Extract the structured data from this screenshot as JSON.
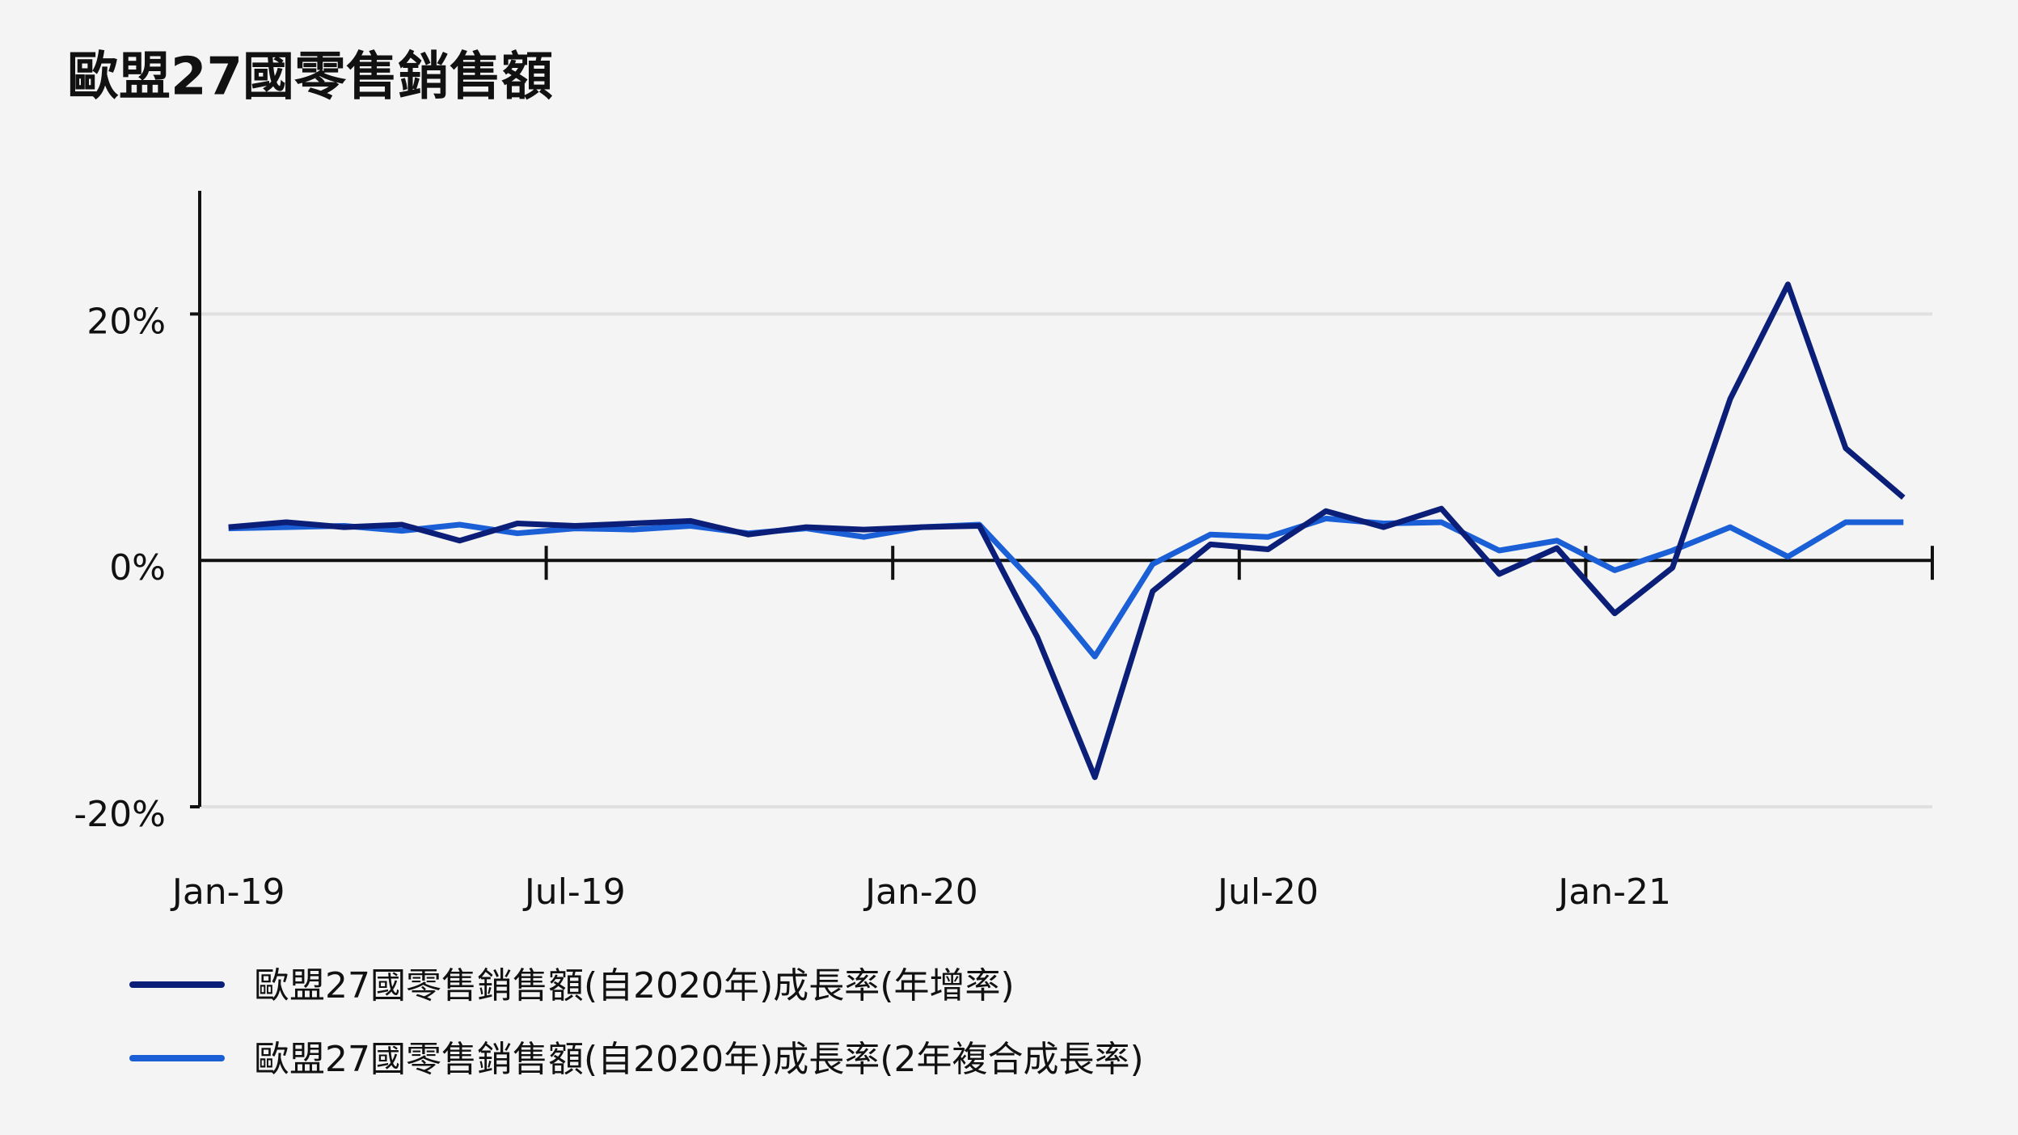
{
  "chart_data": {
    "type": "line",
    "title": "歐盟27國零售銷售額",
    "categories": [
      "Jan-19",
      null,
      null,
      null,
      null,
      null,
      "Jul-19",
      null,
      null,
      null,
      null,
      null,
      "Jan-20",
      null,
      null,
      null,
      null,
      null,
      "Jul-20",
      null,
      null,
      null,
      null,
      null,
      "Jan-21",
      null,
      null,
      null,
      null,
      null
    ],
    "series": [
      {
        "name": "歐盟27國零售銷售額(自2020年)成長率(年增率)",
        "color": "#0c1f78",
        "values": [
          2.7,
          3.1,
          2.7,
          2.9,
          1.6,
          3.0,
          2.8,
          3.0,
          3.2,
          2.1,
          2.7,
          2.5,
          2.7,
          2.8,
          -6.2,
          -17.6,
          -2.5,
          1.3,
          0.9,
          4.0,
          2.7,
          4.2,
          -1.1,
          1.0,
          -4.3,
          -0.6,
          13.1,
          22.4,
          9.1,
          5.1
        ]
      },
      {
        "name": "歐盟27國零售銷售額(自2020年)成長率(2年複合成長率)",
        "color": "#1a5fd6",
        "values": [
          2.6,
          2.7,
          2.8,
          2.4,
          2.9,
          2.2,
          2.6,
          2.5,
          2.8,
          2.2,
          2.6,
          1.9,
          2.7,
          2.9,
          -2.1,
          -7.8,
          -0.3,
          2.1,
          1.9,
          3.4,
          3.0,
          3.1,
          0.8,
          1.6,
          -0.8,
          0.8,
          2.7,
          0.3,
          3.1,
          3.1
        ]
      }
    ],
    "ylim": [
      -20,
      30
    ],
    "yticks": [
      {
        "value": -20,
        "label": "-20%"
      },
      {
        "value": 0,
        "label": "0%"
      },
      {
        "value": 20,
        "label": "20%"
      }
    ],
    "grid": true
  }
}
